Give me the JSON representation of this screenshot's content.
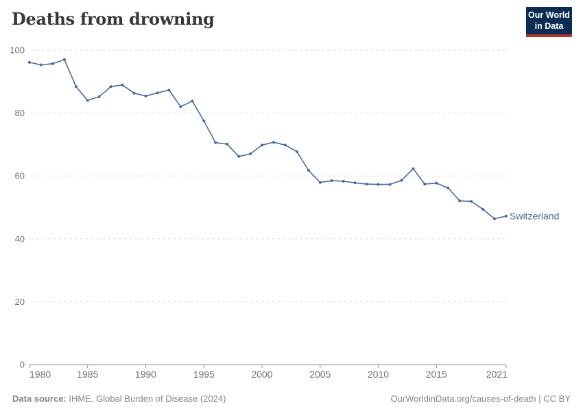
{
  "header": {
    "title": "Deaths from drowning",
    "logo": {
      "line1": "Our World",
      "line2": "in Data"
    }
  },
  "footer": {
    "source_label": "Data source:",
    "source_text": " IHME, Global Burden of Disease (2024)",
    "credit": "OurWorldinData.org/causes-of-death | CC BY"
  },
  "colors": {
    "series": "#4C6A9C",
    "gridline": "#dcdcdc",
    "axis_line": "#8f8f8f",
    "axis_text": "#6f6f6f",
    "title_text": "#373737",
    "footer_text": "#858585",
    "logo_bg": "#0c2d53",
    "logo_bar": "#b0322b"
  },
  "chart_data": {
    "type": "line",
    "title": "Deaths from drowning",
    "xlabel": "",
    "ylabel": "",
    "xlim": [
      1980,
      2021
    ],
    "ylim": [
      0,
      100
    ],
    "x_ticks": [
      1980,
      1985,
      1990,
      1995,
      2000,
      2005,
      2010,
      2015,
      2021
    ],
    "y_ticks": [
      0,
      20,
      40,
      60,
      80,
      100
    ],
    "grid": "horizontal-dashed",
    "legend": "end-of-line-label",
    "series": [
      {
        "name": "Switzerland",
        "x": [
          1980,
          1981,
          1982,
          1983,
          1984,
          1985,
          1986,
          1987,
          1988,
          1989,
          1990,
          1991,
          1992,
          1993,
          1994,
          1995,
          1996,
          1997,
          1998,
          1999,
          2000,
          2001,
          2002,
          2003,
          2004,
          2005,
          2006,
          2007,
          2008,
          2009,
          2010,
          2011,
          2012,
          2013,
          2014,
          2015,
          2016,
          2017,
          2018,
          2019,
          2020,
          2021
        ],
        "values": [
          96.1,
          95.3,
          95.7,
          97.0,
          88.4,
          84.0,
          85.2,
          88.4,
          88.9,
          86.3,
          85.4,
          86.4,
          87.3,
          82.0,
          83.8,
          77.5,
          70.6,
          70.1,
          66.2,
          67.0,
          69.8,
          70.7,
          69.8,
          67.7,
          61.8,
          57.9,
          58.5,
          58.3,
          57.8,
          57.4,
          57.3,
          57.3,
          58.6,
          62.3,
          57.4,
          57.7,
          56.2,
          52.1,
          51.9,
          49.4,
          46.4,
          47.2
        ]
      }
    ]
  }
}
